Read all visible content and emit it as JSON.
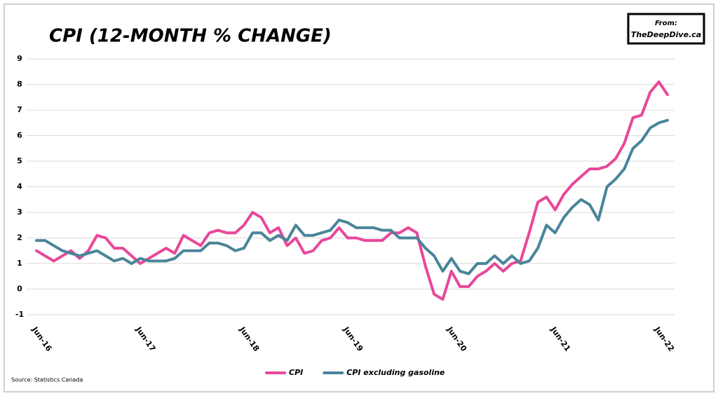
{
  "chart_data": {
    "type": "line",
    "title": "CPI (12-MONTH % CHANGE)",
    "source": "Source: Statistics Canada",
    "credit": [
      "From:",
      "TheDeepDive.ca"
    ],
    "categories": [
      "Jun-16",
      null,
      null,
      null,
      null,
      null,
      null,
      null,
      null,
      null,
      null,
      null,
      "Jun-17",
      null,
      null,
      null,
      null,
      null,
      null,
      null,
      null,
      null,
      null,
      null,
      "Jun-18",
      null,
      null,
      null,
      null,
      null,
      null,
      null,
      null,
      null,
      null,
      null,
      "Jun-19",
      null,
      null,
      null,
      null,
      null,
      null,
      null,
      null,
      null,
      null,
      null,
      "Jun-20",
      null,
      null,
      null,
      null,
      null,
      null,
      null,
      null,
      null,
      null,
      null,
      "Jun-21",
      null,
      null,
      null,
      null,
      null,
      null,
      null,
      null,
      null,
      null,
      null,
      "Jun-22",
      null
    ],
    "series": [
      {
        "name": "CPI",
        "color": "#e8489a",
        "values": [
          1.5,
          1.3,
          1.1,
          1.3,
          1.5,
          1.2,
          1.5,
          2.1,
          2.0,
          1.6,
          1.6,
          1.3,
          1.0,
          1.2,
          1.4,
          1.6,
          1.4,
          2.1,
          1.9,
          1.7,
          2.2,
          2.3,
          2.2,
          2.2,
          2.5,
          3.0,
          2.8,
          2.2,
          2.4,
          1.7,
          2.0,
          1.4,
          1.5,
          1.9,
          2.0,
          2.4,
          2.0,
          2.0,
          1.9,
          1.9,
          1.9,
          2.2,
          2.2,
          2.4,
          2.2,
          0.9,
          -0.2,
          -0.4,
          0.7,
          0.1,
          0.1,
          0.5,
          0.7,
          1.0,
          0.7,
          1.0,
          1.1,
          2.2,
          3.4,
          3.6,
          3.1,
          3.7,
          4.1,
          4.4,
          4.7,
          4.7,
          4.8,
          5.1,
          5.7,
          6.7,
          6.8,
          7.7,
          8.1,
          7.6
        ]
      },
      {
        "name": "CPI excluding gasoline",
        "color": "#4a8599",
        "values": [
          1.9,
          1.9,
          1.7,
          1.5,
          1.4,
          1.3,
          1.4,
          1.5,
          1.3,
          1.1,
          1.2,
          1.0,
          1.2,
          1.1,
          1.1,
          1.1,
          1.2,
          1.5,
          1.5,
          1.5,
          1.8,
          1.8,
          1.7,
          1.5,
          1.6,
          2.2,
          2.2,
          1.9,
          2.1,
          1.9,
          2.5,
          2.1,
          2.1,
          2.2,
          2.3,
          2.7,
          2.6,
          2.4,
          2.4,
          2.4,
          2.3,
          2.3,
          2.0,
          2.0,
          2.0,
          1.6,
          1.3,
          0.7,
          1.2,
          0.7,
          0.6,
          1.0,
          1.0,
          1.3,
          1.0,
          1.3,
          1.0,
          1.1,
          1.6,
          2.5,
          2.2,
          2.8,
          3.2,
          3.5,
          3.3,
          2.7,
          4.0,
          4.3,
          4.7,
          5.5,
          5.8,
          6.3,
          6.5,
          6.6
        ]
      }
    ],
    "ylim": [
      -1,
      9
    ],
    "yticks": [
      -1,
      0,
      1,
      2,
      3,
      4,
      5,
      6,
      7,
      8,
      9
    ],
    "grid": true,
    "legend": "bottom"
  }
}
